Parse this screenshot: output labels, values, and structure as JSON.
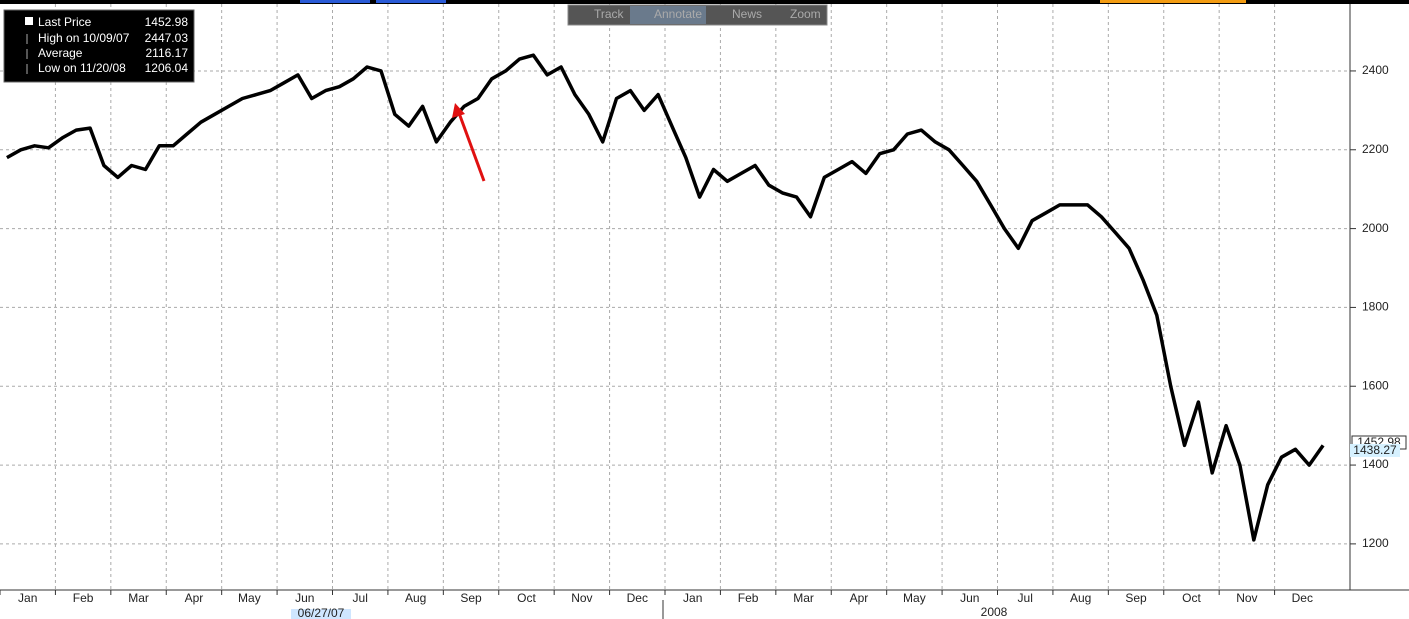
{
  "chart_data": {
    "type": "line",
    "series": [
      {
        "name": "Last Price",
        "color": "#000000",
        "values": [
          2180,
          2200,
          2210,
          2205,
          2230,
          2250,
          2255,
          2160,
          2130,
          2160,
          2150,
          2210,
          2210,
          2240,
          2270,
          2290,
          2310,
          2330,
          2340,
          2350,
          2370,
          2390,
          2330,
          2350,
          2360,
          2380,
          2410,
          2400,
          2290,
          2260,
          2310,
          2220,
          2270,
          2310,
          2330,
          2380,
          2400,
          2430,
          2440,
          2390,
          2410,
          2340,
          2290,
          2220,
          2330,
          2350,
          2300,
          2340,
          2260,
          2180,
          2080,
          2150,
          2120,
          2140,
          2160,
          2110,
          2090,
          2080,
          2030,
          2130,
          2150,
          2170,
          2140,
          2190,
          2200,
          2240,
          2250,
          2220,
          2200,
          2160,
          2120,
          2060,
          2000,
          1950,
          2020,
          2040,
          2060,
          2060,
          2060,
          2030,
          1990,
          1950,
          1870,
          1780,
          1600,
          1450,
          1560,
          1380,
          1500,
          1400,
          1210,
          1350,
          1420,
          1440,
          1400,
          1450
        ]
      }
    ],
    "categories": [
      "Jan",
      null,
      null,
      null,
      "Feb",
      null,
      null,
      null,
      "Mar",
      null,
      null,
      null,
      "Apr",
      null,
      null,
      null,
      "May",
      null,
      null,
      null,
      "Jun",
      null,
      null,
      null,
      "Jul",
      null,
      null,
      null,
      "Aug",
      null,
      null,
      null,
      "Sep",
      null,
      null,
      null,
      "Oct",
      null,
      null,
      null,
      "Nov",
      null,
      null,
      null,
      "Dec",
      null,
      null,
      null,
      "Jan",
      null,
      null,
      null,
      "Feb",
      null,
      null,
      null,
      "Mar",
      null,
      null,
      null,
      "Apr",
      null,
      null,
      null,
      "May",
      null,
      null,
      null,
      "Jun",
      null,
      null,
      null,
      "Jul",
      null,
      null,
      null,
      "Aug",
      null,
      null,
      null,
      "Sep",
      null,
      null,
      null,
      "Oct",
      null,
      null,
      null,
      "Nov",
      null,
      null,
      null,
      "Dec",
      null,
      null,
      null
    ],
    "ylim": [
      1083,
      2580
    ],
    "yticks": [
      1200,
      1400,
      1600,
      1800,
      2000,
      2200,
      2400
    ],
    "grid": true,
    "last_price": 1452.98,
    "legend_stats": [
      {
        "label": "High on 10/09/07",
        "value": 2447.03
      },
      {
        "label": "Average",
        "value": 2116.17
      },
      {
        "label": "Low on 11/20/08",
        "value": 1206.04
      }
    ],
    "marker_value": 1438.27,
    "toolbar": [
      "Track",
      "Annotate",
      "News",
      "Zoom"
    ],
    "date_marker": "06/27/07",
    "year_label": "2008"
  }
}
